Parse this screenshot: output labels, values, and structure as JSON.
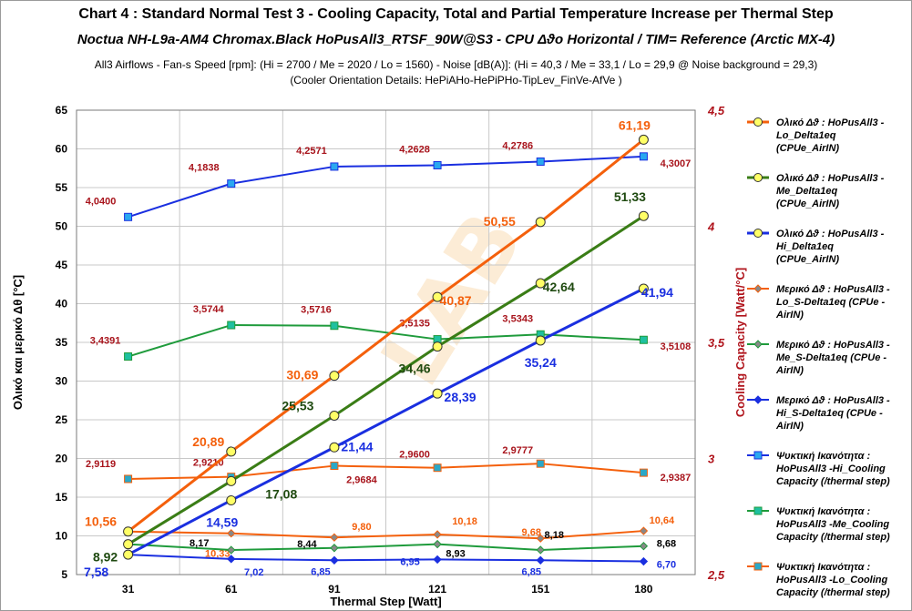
{
  "header": {
    "title": "Chart 4 :  Standard  Normal  Test  3  -  Cooling Capacity,  Total and Partial Temperature Increase per Thermal Step",
    "subtitle": "Noctua NH-L9a-AM4 Chromax.Black  HoPusAll3_RTSF_90W@S3 - CPU  Δϑo Horizontal / TIM= Reference (Arctic MX-4)",
    "line3": "All3  Airflows  -  Fan-s Speed [rpm]: (Hi = 2700  / Me = 2020  / Lo = 1560)  - Noise [dB(A)]: (Hi = 40,3  / Me = 33,1  / Lo = 29,9  @ Noise background = 29,3)",
    "line4": "(Cooler Orientation Details: HePiAHo-HePiPHo-TipLev_FinVe-AfVe )"
  },
  "watermark": "LAB",
  "chart_data": {
    "type": "line",
    "x": [
      31,
      61,
      91,
      121,
      151,
      180
    ],
    "xlabel": "Thermal Step [Watt]",
    "ylabel": "Ολικό και μερικό  Δθ  [°C]",
    "y2label": "Cooling Capacity  [Watt/°C]",
    "ylim": [
      5,
      65
    ],
    "y2lim": [
      2.5,
      4.5
    ],
    "yticks": [
      "5",
      "10",
      "15",
      "20",
      "25",
      "30",
      "35",
      "40",
      "45",
      "50",
      "55",
      "60",
      "65"
    ],
    "y2ticks": [
      "2,5",
      "3",
      "3,5",
      "4",
      "4,5"
    ],
    "xticks": [
      "31",
      "61",
      "91",
      "121",
      "151",
      "180"
    ],
    "grid": true,
    "legend_position": "right",
    "series": [
      {
        "name": "Ολικό Δϑ : HoPusAll3 - Lo_Delta1eq  (CPUe_AirIN)",
        "axis": "left",
        "color": "#f4600c",
        "marker": "circle",
        "fill": "#ffff66",
        "width": 3,
        "values": [
          10.56,
          20.89,
          30.69,
          40.87,
          50.55,
          61.19
        ],
        "labels": [
          "10,56",
          "20,89",
          "30,69",
          "40,87",
          "50,55",
          "61,19"
        ],
        "label_color": "#f4600c"
      },
      {
        "name": "Ολικό Δϑ : HoPusAll3 - Me_Delta1eq  (CPUe_AirIN)",
        "axis": "left",
        "color": "#3a7d16",
        "marker": "circle",
        "fill": "#ffff66",
        "width": 3,
        "values": [
          8.92,
          17.08,
          25.53,
          34.46,
          42.64,
          51.33
        ],
        "labels": [
          "8,92",
          "17,08",
          "25,53",
          "34,46",
          "42,64",
          "51,33"
        ],
        "label_color": "#1f4a10"
      },
      {
        "name": "Ολικό Δϑ : HoPusAll3 - Hi_Delta1eq  (CPUe_AirIN)",
        "axis": "left",
        "color": "#1a2fe0",
        "marker": "circle",
        "fill": "#ffff66",
        "width": 3,
        "values": [
          7.58,
          14.59,
          21.44,
          28.39,
          35.24,
          41.94
        ],
        "labels": [
          "7,58",
          "14,59",
          "21,44",
          "28,39",
          "35,24",
          "41,94"
        ],
        "label_color": "#1a2fe0"
      },
      {
        "name": "Μερικό Δϑ : HoPusAll3 - Lo_S-Delta1eq  (CPUe - AirIN)",
        "axis": "left",
        "color": "#f4600c",
        "marker": "diamond",
        "fill": "#888888",
        "width": 2,
        "values": [
          10.56,
          10.33,
          9.8,
          10.18,
          9.68,
          10.64
        ],
        "labels": [
          "",
          "10,33",
          "9,80",
          "10,18",
          "9,68",
          "10,64"
        ],
        "label_color": "#f4600c"
      },
      {
        "name": "Μερικό Δϑ : HoPusAll3 - Me_S-Delta1eq  (CPUe - AirIN)",
        "axis": "left",
        "color": "#1f9b3c",
        "marker": "diamond",
        "fill": "#888888",
        "width": 2,
        "values": [
          8.92,
          8.17,
          8.44,
          8.93,
          8.18,
          8.68
        ],
        "labels": [
          "",
          "8,17",
          "8,44",
          "8,93",
          "8,18",
          "8,68"
        ],
        "label_color": "#000000"
      },
      {
        "name": "Μερικό Δϑ : HoPusAll3 - Hi_S-Delta1eq  (CPUe - AirIN)",
        "axis": "left",
        "color": "#1a2fe0",
        "marker": "diamond",
        "fill": "#1a2fe0",
        "width": 2,
        "values": [
          7.58,
          7.02,
          6.85,
          6.95,
          6.85,
          6.7
        ],
        "labels": [
          "",
          "7,02",
          "6,85",
          "6,95",
          "6,85",
          "6,70"
        ],
        "label_color": "#1a2fe0"
      },
      {
        "name": "Ψυκτική Ικανότητα : HoPusAll3 -Hi_Cooling Capacity (/thermal step)",
        "axis": "right",
        "color": "#1a2fe0",
        "marker": "square",
        "fill": "#2aa8f0",
        "width": 2,
        "values": [
          4.04,
          4.1838,
          4.2571,
          4.2628,
          4.2786,
          4.3007
        ],
        "labels": [
          "4,0400",
          "4,1838",
          "4,2571",
          "4,2628",
          "4,2786",
          "4,3007"
        ],
        "label_color": "#a8141c"
      },
      {
        "name": "Ψυκτική Ικανότητα : HoPusAll3 -Me_Cooling Capacity (/thermal step)",
        "axis": "right",
        "color": "#1f9b3c",
        "marker": "square",
        "fill": "#1fc0a0",
        "width": 2,
        "values": [
          3.4391,
          3.5744,
          3.5716,
          3.5135,
          3.5343,
          3.5108
        ],
        "labels": [
          "3,4391",
          "3,5744",
          "3,5716",
          "3,5135",
          "3,5343",
          "3,5108"
        ],
        "label_color": "#a8141c"
      },
      {
        "name": "Ψυκτική Ικανότητα : HoPusAll3 -Lo_Cooling Capacity (/thermal step)",
        "axis": "right",
        "color": "#f4600c",
        "marker": "square",
        "fill": "#2aa8c8",
        "width": 2,
        "values": [
          2.9119,
          2.921,
          2.9684,
          2.96,
          2.9777,
          2.9387
        ],
        "labels": [
          "2,9119",
          "2,9210",
          "2,9684",
          "2,9600",
          "2,9777",
          "2,9387"
        ],
        "label_color": "#a8141c"
      }
    ]
  }
}
